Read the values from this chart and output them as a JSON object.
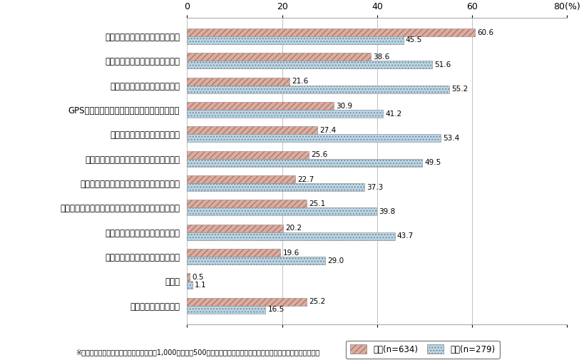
{
  "categories": [
    "手を使わずに機械の操作ができる",
    "手を使わずにマニュアルが読める",
    "仲間との連絡が取りやすくなる",
    "GPS機能などで仲間の状況を把握しやすくなる",
    "写真・動画撮影が簡単にできる",
    "商品のバーコードの読み取りが簡単になる",
    "陳列棚の内容を即座に把握することができる",
    "顔認識機能を利用し、顧客情報を調べることができる",
    "装置を遠隔操作することができる",
    "車の運転を遠隔でサポートできる",
    "その他",
    "分からない・特にない"
  ],
  "japan_values": [
    60.6,
    38.6,
    21.6,
    30.9,
    27.4,
    25.6,
    22.7,
    25.1,
    20.2,
    19.6,
    0.5,
    25.2
  ],
  "usa_values": [
    45.5,
    51.6,
    55.2,
    41.2,
    53.4,
    49.5,
    37.3,
    39.8,
    43.7,
    29.0,
    1.1,
    16.5
  ],
  "japan_color": "#E8A898",
  "usa_color": "#B8D8EC",
  "japan_hatch": "////",
  "usa_hatch": "....",
  "japan_label": "日本(n=634)",
  "usa_label": "米国(n=279)",
  "xlim": [
    0,
    80
  ],
  "xticks": [
    0,
    20,
    40,
    60,
    80
  ],
  "bar_height": 0.32,
  "footnote": "※回答対象はスマートフォン所有者（日本1,000人、米国500人）のうち、会社員、自営業、公務員、専門職（複数回答）"
}
